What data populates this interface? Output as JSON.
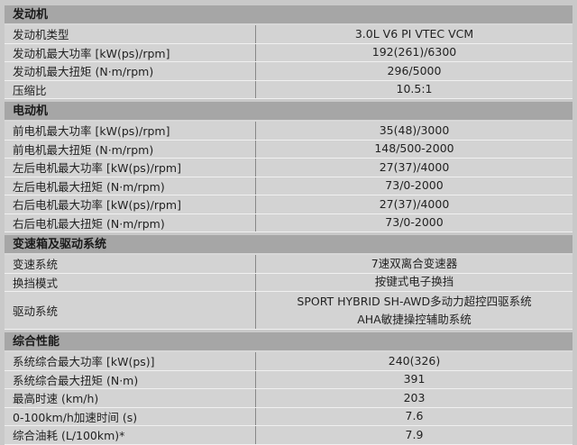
{
  "sections": [
    {
      "title": "发动机",
      "rows": [
        {
          "k": "发动机类型",
          "v": [
            "3.0L V6 PI VTEC VCM"
          ]
        },
        {
          "k": "发动机最大功率 [kW(ps)/rpm]",
          "v": [
            "192(261)/6300"
          ]
        },
        {
          "k": "发动机最大扭矩 (N·m/rpm)",
          "v": [
            "296/5000"
          ]
        },
        {
          "k": "压缩比",
          "v": [
            "10.5:1"
          ]
        }
      ]
    },
    {
      "title": "电动机",
      "rows": [
        {
          "k": "前电机最大功率 [kW(ps)/rpm]",
          "v": [
            "35(48)/3000"
          ]
        },
        {
          "k": "前电机最大扭矩 (N·m/rpm)",
          "v": [
            "148/500-2000"
          ]
        },
        {
          "k": "左后电机最大功率 [kW(ps)/rpm]",
          "v": [
            "27(37)/4000"
          ]
        },
        {
          "k": "左后电机最大扭矩 (N·m/rpm)",
          "v": [
            "73/0-2000"
          ]
        },
        {
          "k": "右后电机最大功率 [kW(ps)/rpm]",
          "v": [
            "27(37)/4000"
          ]
        },
        {
          "k": "右后电机最大扭矩 (N·m/rpm)",
          "v": [
            "73/0-2000"
          ]
        }
      ]
    },
    {
      "title": "变速箱及驱动系统",
      "rows": [
        {
          "k": "变速系统",
          "v": [
            "7速双离合变速器"
          ]
        },
        {
          "k": "换挡模式",
          "v": [
            "按键式电子换挡"
          ]
        },
        {
          "k": "驱动系统",
          "v": [
            "SPORT HYBRID SH-AWD多动力超控四驱系统",
            "AHA敏捷操控辅助系统"
          ]
        }
      ]
    },
    {
      "title": "综合性能",
      "rows": [
        {
          "k": "系统综合最大功率 [kW(ps)]",
          "v": [
            "240(326)"
          ]
        },
        {
          "k": "系统综合最大扭矩 (N·m)",
          "v": [
            "391"
          ]
        },
        {
          "k": "最高时速 (km/h)",
          "v": [
            "203"
          ]
        },
        {
          "k": "0-100km/h加速时间 (s)",
          "v": [
            "7.6"
          ]
        },
        {
          "k": "综合油耗 (L/100km)*",
          "v": [
            "7.9"
          ]
        }
      ]
    }
  ]
}
